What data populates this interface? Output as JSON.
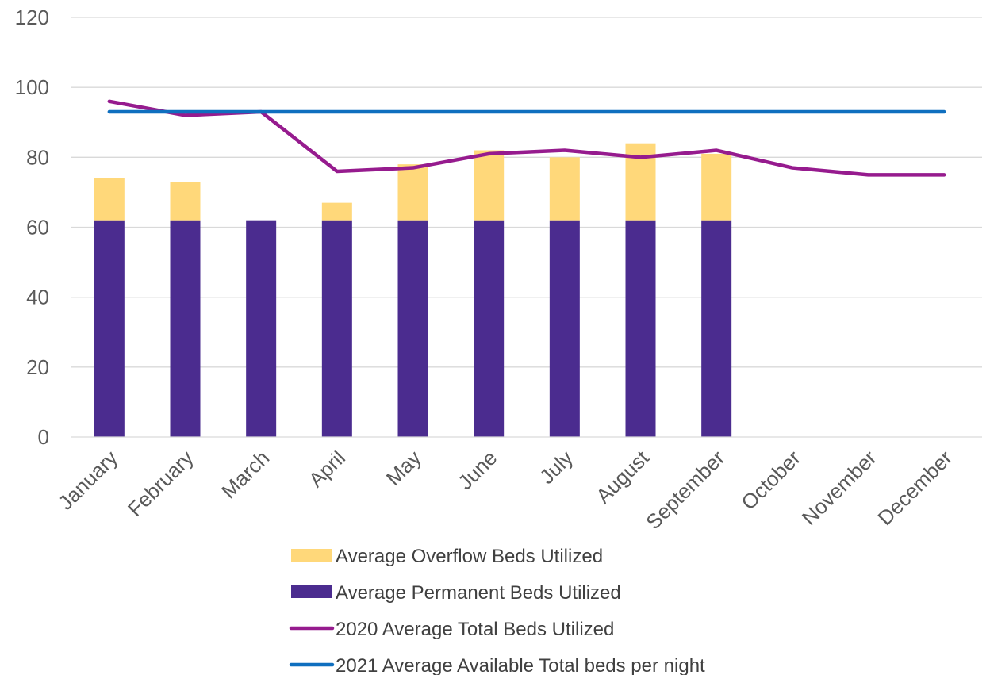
{
  "chart_data": {
    "type": "bar",
    "title": "",
    "xlabel": "",
    "ylabel": "",
    "ylim": [
      0,
      120
    ],
    "yticks": [
      0,
      20,
      40,
      60,
      80,
      100,
      120
    ],
    "grid": true,
    "legend_position": "bottom",
    "categories": [
      "January",
      "February",
      "March",
      "April",
      "May",
      "June",
      "July",
      "August",
      "September",
      "October",
      "November",
      "December"
    ],
    "series": [
      {
        "name": "Average Permanent Beds Utilized",
        "kind": "bar",
        "stack": "beds",
        "color": "#4B2C8F",
        "values": [
          62,
          62,
          62,
          62,
          62,
          62,
          62,
          62,
          62,
          null,
          null,
          null
        ]
      },
      {
        "name": "Average Overflow Beds Utilized",
        "kind": "bar",
        "stack": "beds",
        "color": "#FFD87A",
        "values": [
          12,
          11,
          0,
          5,
          16,
          20,
          18,
          22,
          19,
          null,
          null,
          null
        ]
      },
      {
        "name": "2020 Average Total Beds Utilized",
        "kind": "line",
        "color": "#961B8E",
        "values": [
          96,
          92,
          93,
          76,
          77,
          81,
          82,
          80,
          82,
          77,
          75,
          75
        ]
      },
      {
        "name": "2021 Average Available Total beds per night",
        "kind": "line",
        "color": "#0F6FBF",
        "values": [
          93,
          93,
          93,
          93,
          93,
          93,
          93,
          93,
          93,
          93,
          93,
          93
        ]
      }
    ],
    "legend": [
      {
        "label": "Average Overflow Beds Utilized",
        "swatch": "bar",
        "color": "#FFD87A"
      },
      {
        "label": "Average Permanent Beds Utilized",
        "swatch": "bar",
        "color": "#4B2C8F"
      },
      {
        "label": "2020 Average Total Beds Utilized",
        "swatch": "line",
        "color": "#961B8E"
      },
      {
        "label": "2021 Average Available Total beds per night",
        "swatch": "line",
        "color": "#0F6FBF"
      }
    ],
    "gridline_color": "#D9D9D9",
    "axis_label_color": "#595959"
  }
}
